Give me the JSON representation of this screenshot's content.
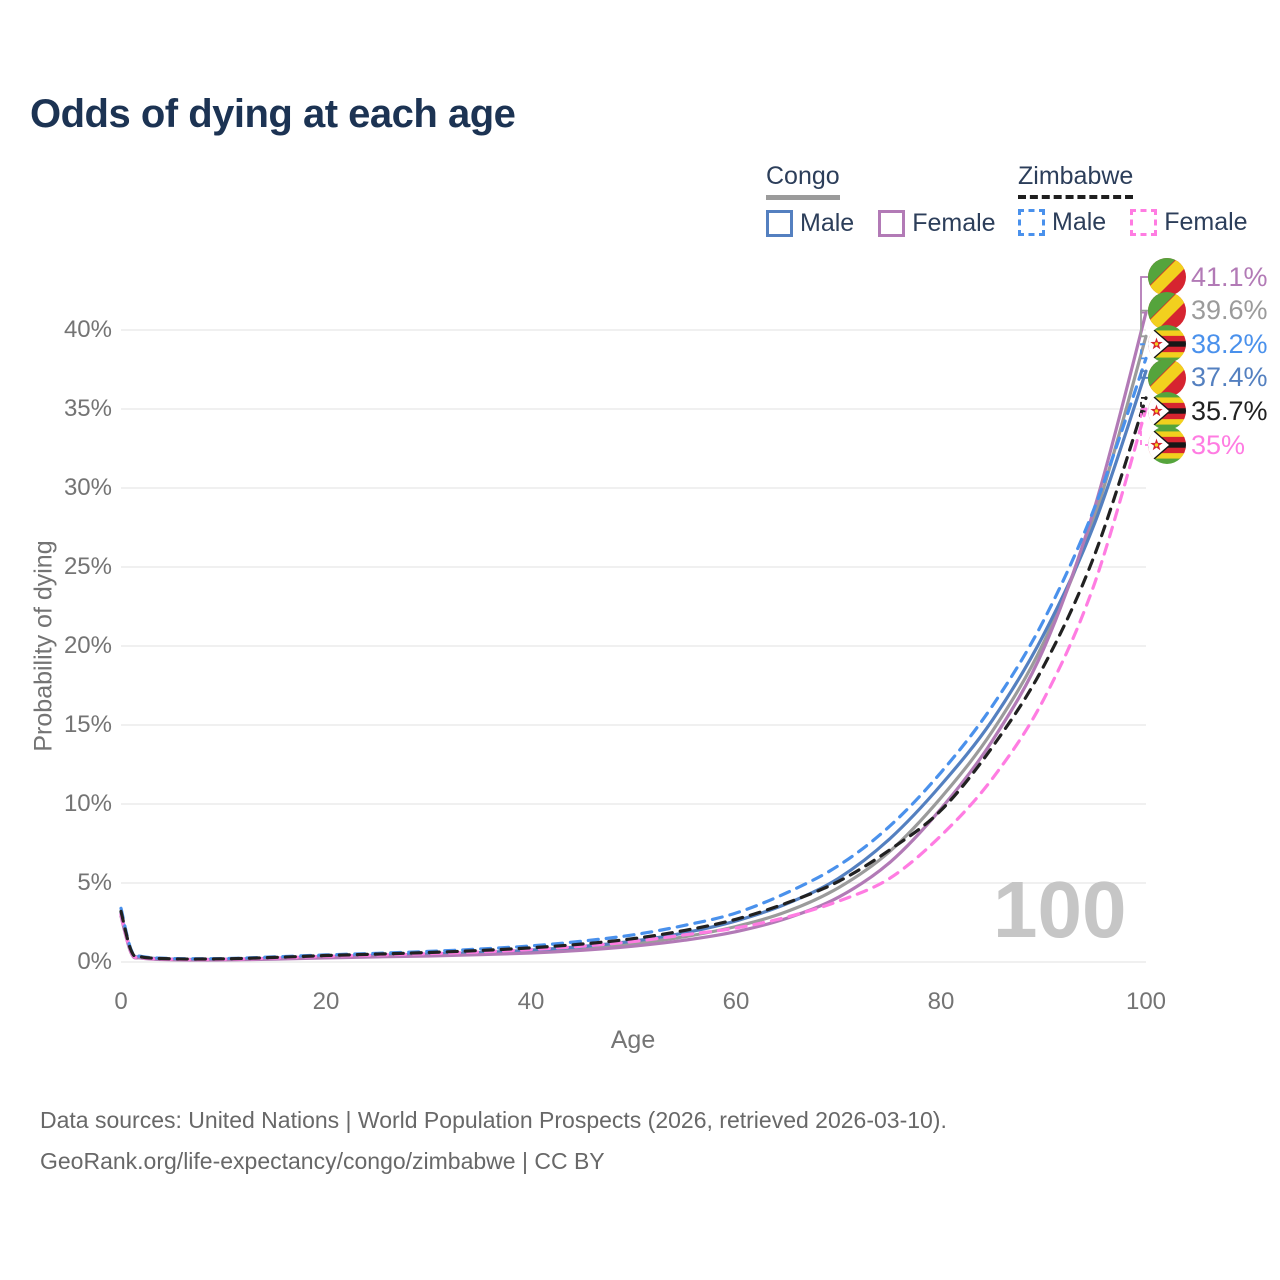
{
  "report": {
    "title": "Odds of dying at each age"
  },
  "legend": {
    "groups": [
      {
        "label": "Congo",
        "line_style": "solid",
        "line_color": "#9b9b9b",
        "items": [
          {
            "label": "Male",
            "color": "#5480c0",
            "dashed": false
          },
          {
            "label": "Female",
            "color": "#b27ab6",
            "dashed": false
          }
        ]
      },
      {
        "label": "Zimbabwe",
        "line_style": "dashed",
        "line_color": "#1f1f1f",
        "items": [
          {
            "label": "Male",
            "color": "#4a91ec",
            "dashed": true
          },
          {
            "label": "Female",
            "color": "#ff7ce2",
            "dashed": true
          }
        ]
      }
    ]
  },
  "chart_data": {
    "type": "line",
    "title": "Odds of dying at each age",
    "xlabel": "Age",
    "ylabel": "Probability of dying",
    "x_ticks": [
      "0",
      "20",
      "40",
      "60",
      "80",
      "100"
    ],
    "x_tick_values": [
      0,
      20,
      40,
      60,
      80,
      100
    ],
    "y_ticks": [
      "0%",
      "5%",
      "10%",
      "15%",
      "20%",
      "25%",
      "30%",
      "35%",
      "40%"
    ],
    "y_tick_values": [
      0,
      5,
      10,
      15,
      20,
      25,
      30,
      35,
      40
    ],
    "xlim": [
      0,
      100
    ],
    "ylim": [
      0,
      43
    ],
    "grid": "horizontal",
    "age_ticker": "100",
    "x": [
      0,
      1,
      2,
      5,
      10,
      15,
      20,
      25,
      30,
      35,
      40,
      45,
      50,
      55,
      60,
      65,
      70,
      75,
      80,
      85,
      90,
      95,
      100
    ],
    "series": [
      {
        "id": "congo_total",
        "name": "Congo",
        "color": "#9b9b9b",
        "dashed": false,
        "values": [
          3.0,
          0.6,
          0.28,
          0.16,
          0.15,
          0.21,
          0.3,
          0.37,
          0.44,
          0.53,
          0.66,
          0.86,
          1.16,
          1.6,
          2.25,
          3.2,
          4.7,
          7.0,
          10.4,
          14.6,
          20.2,
          28.2,
          39.6
        ]
      },
      {
        "id": "congo_male",
        "name": "Congo Male",
        "color": "#5480c0",
        "dashed": false,
        "values": [
          3.1,
          0.65,
          0.3,
          0.18,
          0.17,
          0.24,
          0.34,
          0.42,
          0.5,
          0.6,
          0.75,
          0.98,
          1.32,
          1.85,
          2.6,
          3.7,
          5.3,
          7.8,
          11.2,
          15.3,
          20.7,
          27.8,
          37.4
        ]
      },
      {
        "id": "congo_female",
        "name": "Congo Female",
        "color": "#b27ab6",
        "dashed": false,
        "values": [
          2.9,
          0.55,
          0.25,
          0.14,
          0.13,
          0.18,
          0.26,
          0.32,
          0.38,
          0.46,
          0.57,
          0.74,
          1.0,
          1.38,
          1.92,
          2.78,
          4.1,
          6.3,
          9.7,
          14.0,
          19.8,
          28.8,
          41.1
        ]
      },
      {
        "id": "zimbabwe_female",
        "name": "Zimbabwe Female",
        "color": "#ff7ce2",
        "dashed": true,
        "values": [
          3.0,
          0.62,
          0.28,
          0.17,
          0.17,
          0.25,
          0.36,
          0.44,
          0.53,
          0.64,
          0.79,
          1.0,
          1.3,
          1.72,
          2.15,
          2.85,
          3.85,
          5.3,
          8.0,
          11.6,
          16.6,
          24.0,
          35.0
        ]
      },
      {
        "id": "zimbabwe_male",
        "name": "Zimbabwe Male",
        "color": "#4a91ec",
        "dashed": true,
        "values": [
          3.4,
          0.75,
          0.35,
          0.22,
          0.22,
          0.32,
          0.45,
          0.55,
          0.67,
          0.82,
          1.02,
          1.32,
          1.72,
          2.32,
          3.1,
          4.4,
          6.1,
          8.6,
          12.0,
          16.2,
          21.6,
          28.8,
          38.2
        ]
      },
      {
        "id": "zimbabwe_total",
        "name": "Zimbabwe",
        "color": "#212121",
        "dashed": true,
        "values": [
          3.2,
          0.7,
          0.32,
          0.2,
          0.2,
          0.29,
          0.41,
          0.5,
          0.6,
          0.73,
          0.9,
          1.14,
          1.48,
          2.0,
          2.7,
          3.75,
          5.1,
          7.1,
          9.6,
          13.6,
          18.7,
          25.8,
          35.7
        ]
      }
    ],
    "end_labels": [
      {
        "series": "congo_female",
        "text": "41.1%",
        "color": "#b27ab6",
        "flag": "congo"
      },
      {
        "series": "congo_total",
        "text": "39.6%",
        "color": "#9b9b9b",
        "flag": "congo"
      },
      {
        "series": "zimbabwe_male",
        "text": "38.2%",
        "color": "#4a91ec",
        "flag": "zimbabwe"
      },
      {
        "series": "congo_male",
        "text": "37.4%",
        "color": "#5480c0",
        "flag": "congo"
      },
      {
        "series": "zimbabwe_total",
        "text": "35.7%",
        "color": "#212121",
        "flag": "zimbabwe"
      },
      {
        "series": "zimbabwe_female",
        "text": "35%",
        "color": "#ff7ce2",
        "flag": "zimbabwe"
      }
    ],
    "flag_colors": {
      "green": "#55a43c",
      "yellow": "#f2d01e",
      "red": "#d62430",
      "black": "#171717",
      "white": "#ffffff"
    }
  },
  "footer": {
    "line1": "Data sources: United Nations | World Population Prospects (2026, retrieved 2026-03-10).",
    "line2": "GeoRank.org/life-expectancy/congo/zimbabwe | CC BY"
  }
}
